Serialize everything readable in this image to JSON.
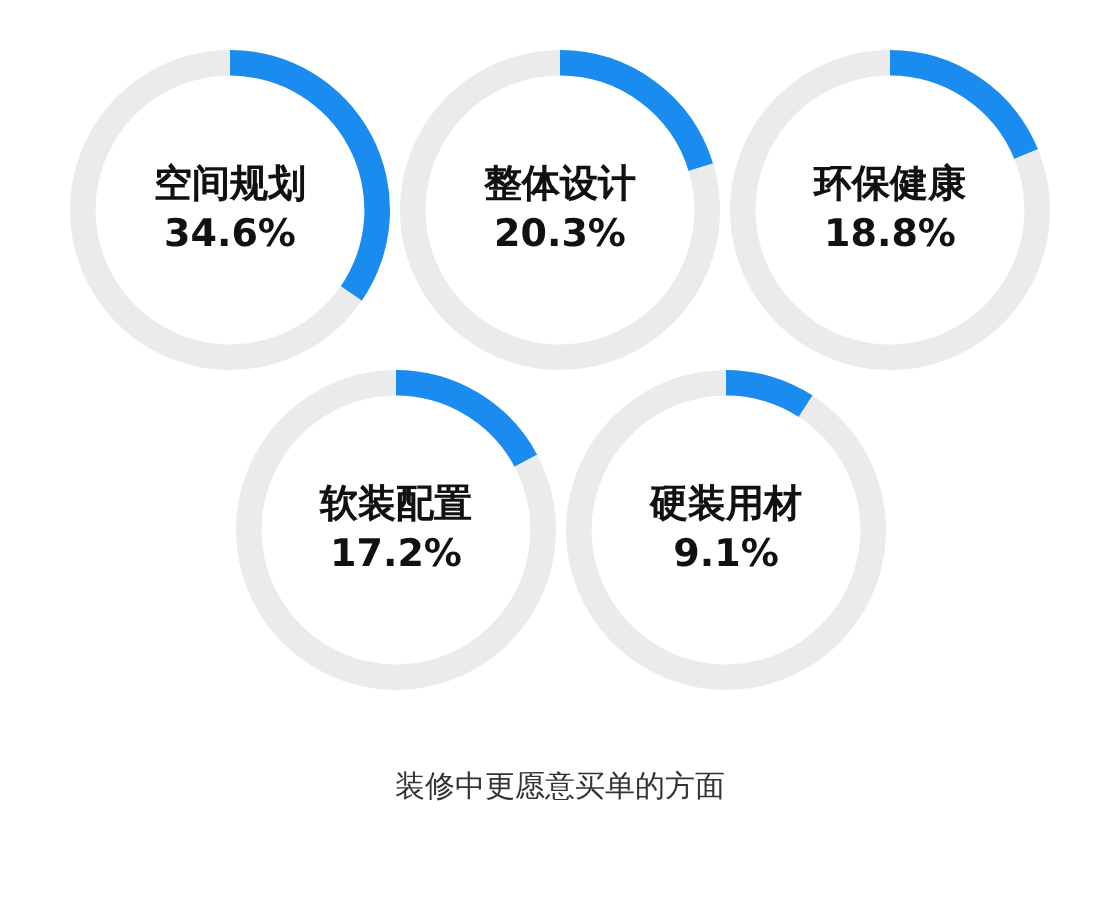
{
  "chart_data": [
    {
      "type": "donut",
      "categories": [
        "空间规划",
        null
      ],
      "values": [
        34.6,
        65.4
      ],
      "colors": [
        "#1a8cf0",
        "#ebebeb"
      ],
      "value_labels": [
        "34.6%",
        null
      ]
    },
    {
      "type": "donut",
      "categories": [
        "整体设计",
        null
      ],
      "values": [
        20.3,
        79.7
      ],
      "colors": [
        "#1a8cf0",
        "#ebebeb"
      ],
      "value_labels": [
        "20.3%",
        null
      ]
    },
    {
      "type": "donut",
      "categories": [
        "环保健康",
        null
      ],
      "values": [
        18.8,
        81.2
      ],
      "colors": [
        "#1a8cf0",
        "#ebebeb"
      ],
      "value_labels": [
        "18.8%",
        null
      ]
    },
    {
      "type": "donut",
      "categories": [
        "软装配置",
        null
      ],
      "values": [
        17.2,
        82.8
      ],
      "colors": [
        "#1a8cf0",
        "#ebebeb"
      ],
      "value_labels": [
        "17.2%",
        null
      ]
    },
    {
      "type": "donut",
      "categories": [
        "硬装用材",
        null
      ],
      "values": [
        9.1,
        90.9
      ],
      "colors": [
        "#1a8cf0",
        "#ebebeb"
      ],
      "value_labels": [
        "9.1%",
        null
      ]
    },
    {
      "type": "other",
      "title": "装修中更愿意买单的方面"
    }
  ]
}
